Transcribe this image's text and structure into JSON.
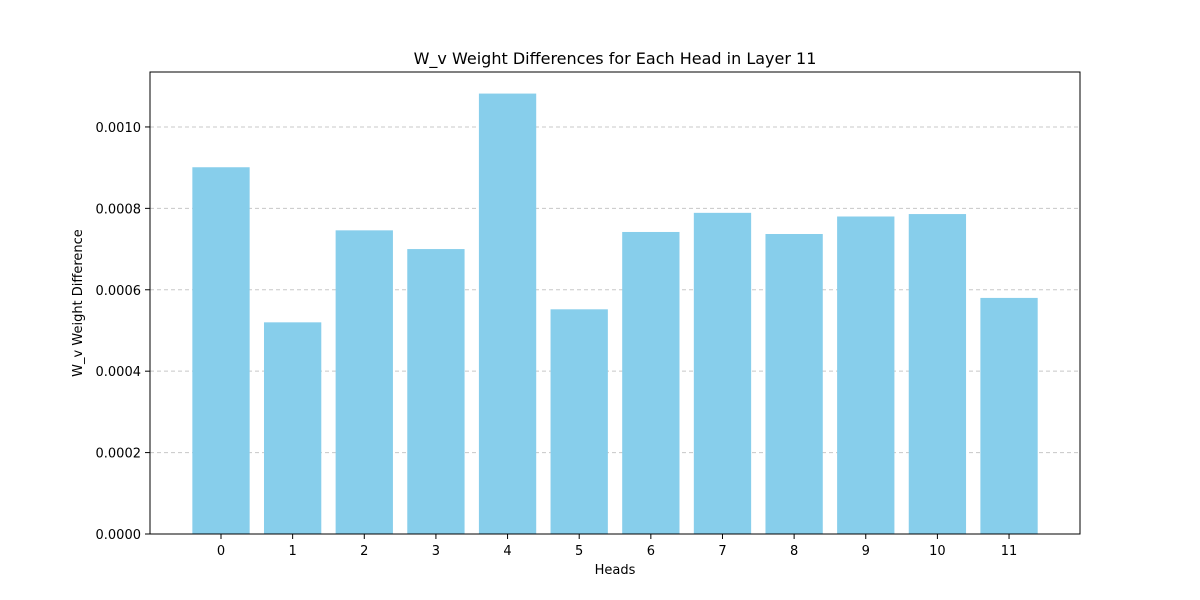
{
  "chart_data": {
    "type": "bar",
    "title": "W_v Weight Differences for Each Head in Layer 11",
    "xlabel": "Heads",
    "ylabel": "W_v Weight Difference",
    "categories": [
      "0",
      "1",
      "2",
      "3",
      "4",
      "5",
      "6",
      "7",
      "8",
      "9",
      "10",
      "11"
    ],
    "values": [
      0.000901,
      0.00052,
      0.000746,
      0.0007,
      0.001082,
      0.000552,
      0.000742,
      0.000789,
      0.000737,
      0.00078,
      0.000786,
      0.00058
    ],
    "ylim": [
      0,
      0.001135
    ],
    "yticks": [
      0,
      0.0002,
      0.0004,
      0.0006,
      0.0008,
      0.001
    ],
    "ytick_labels": [
      "0.0000",
      "0.0002",
      "0.0004",
      "0.0006",
      "0.0008",
      "0.0010"
    ],
    "grid": "y-dashed",
    "bar_color": "#87ceeb"
  }
}
